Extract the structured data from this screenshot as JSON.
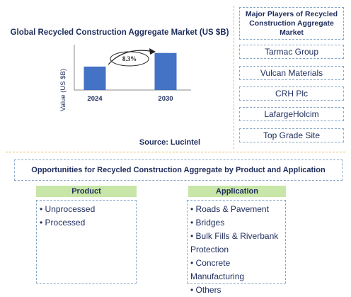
{
  "chart_data": {
    "type": "bar",
    "title": "Global Recycled Construction Aggregate Market (US $B)",
    "ylabel": "Value (US $B)",
    "categories": [
      "2024",
      "2030"
    ],
    "values": [
      0.62,
      0.98
    ],
    "ylim": [
      0,
      1.2
    ],
    "bar_color": "#4472c4",
    "annotation": "8.3%",
    "source": "Source: Lucintel"
  },
  "players": {
    "title": "Major Players of Recycled Construction Aggregate Market",
    "items": [
      "Tarmac Group",
      "Vulcan Materials",
      "CRH Plc",
      "LafargeHolcim",
      "Top Grade Site"
    ]
  },
  "opportunities": {
    "title": "Opportunities for Recycled Construction Aggregate by Product and Application",
    "product": {
      "heading": "Product",
      "items": [
        "Unprocessed",
        "Processed"
      ]
    },
    "application": {
      "heading": "Application",
      "items": [
        "Roads & Pavement",
        "Bridges",
        "Bulk Fills & Riverbank Protection",
        "Concrete Manufacturing",
        "Others"
      ]
    }
  }
}
